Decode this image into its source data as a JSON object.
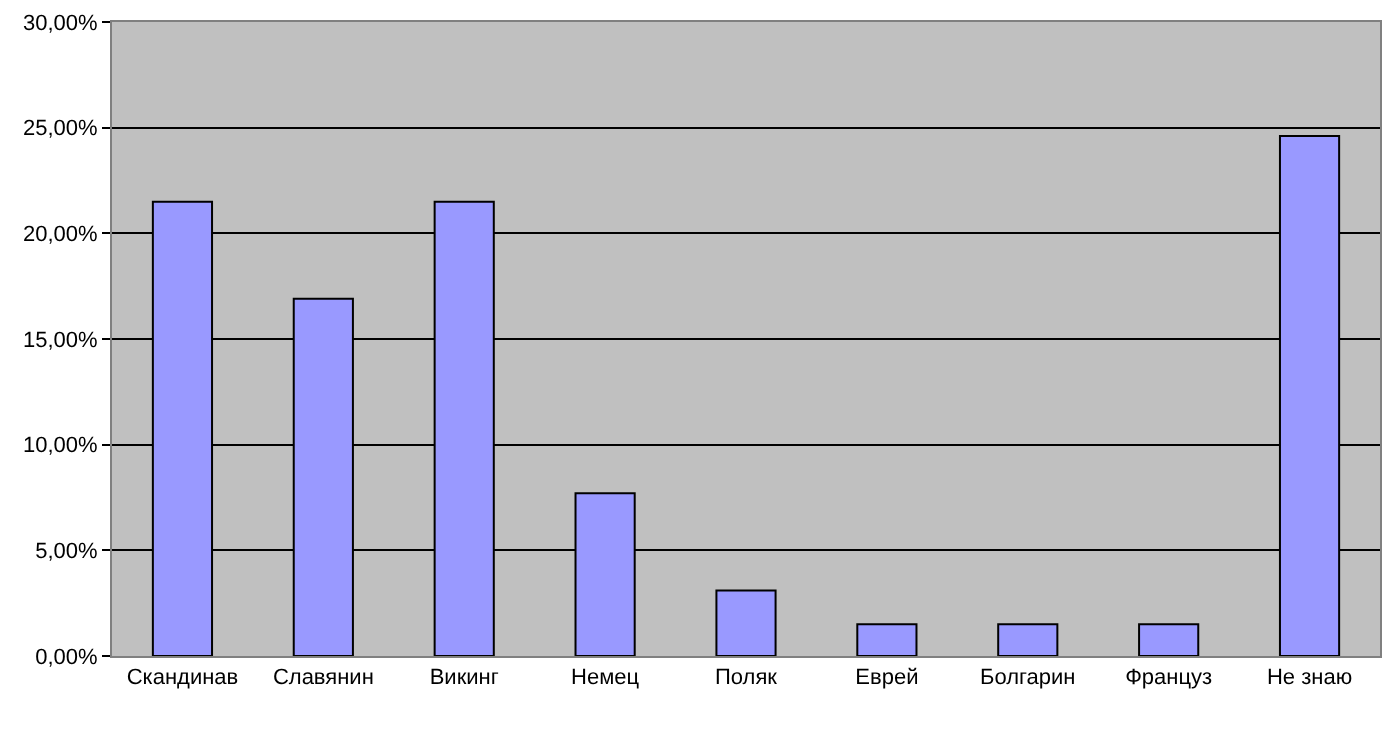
{
  "chart_data": {
    "type": "bar",
    "categories": [
      "Скандинав",
      "Славянин",
      "Викинг",
      "Немец",
      "Поляк",
      "Еврей",
      "Болгарин",
      "Француз",
      "Не знаю"
    ],
    "values": [
      21.5,
      16.9,
      21.5,
      7.7,
      3.1,
      1.5,
      1.5,
      1.5,
      24.6
    ],
    "color": "#9999ff",
    "ylim": [
      0,
      30
    ],
    "yticks": [
      {
        "value": 0,
        "label": "0,00%"
      },
      {
        "value": 5,
        "label": "5,00%"
      },
      {
        "value": 10,
        "label": "10,00%"
      },
      {
        "value": 15,
        "label": "15,00%"
      },
      {
        "value": 20,
        "label": "20,00%"
      },
      {
        "value": 25,
        "label": "25,00%"
      },
      {
        "value": 30,
        "label": "30,00%"
      }
    ],
    "grid": "y",
    "legend": false
  }
}
